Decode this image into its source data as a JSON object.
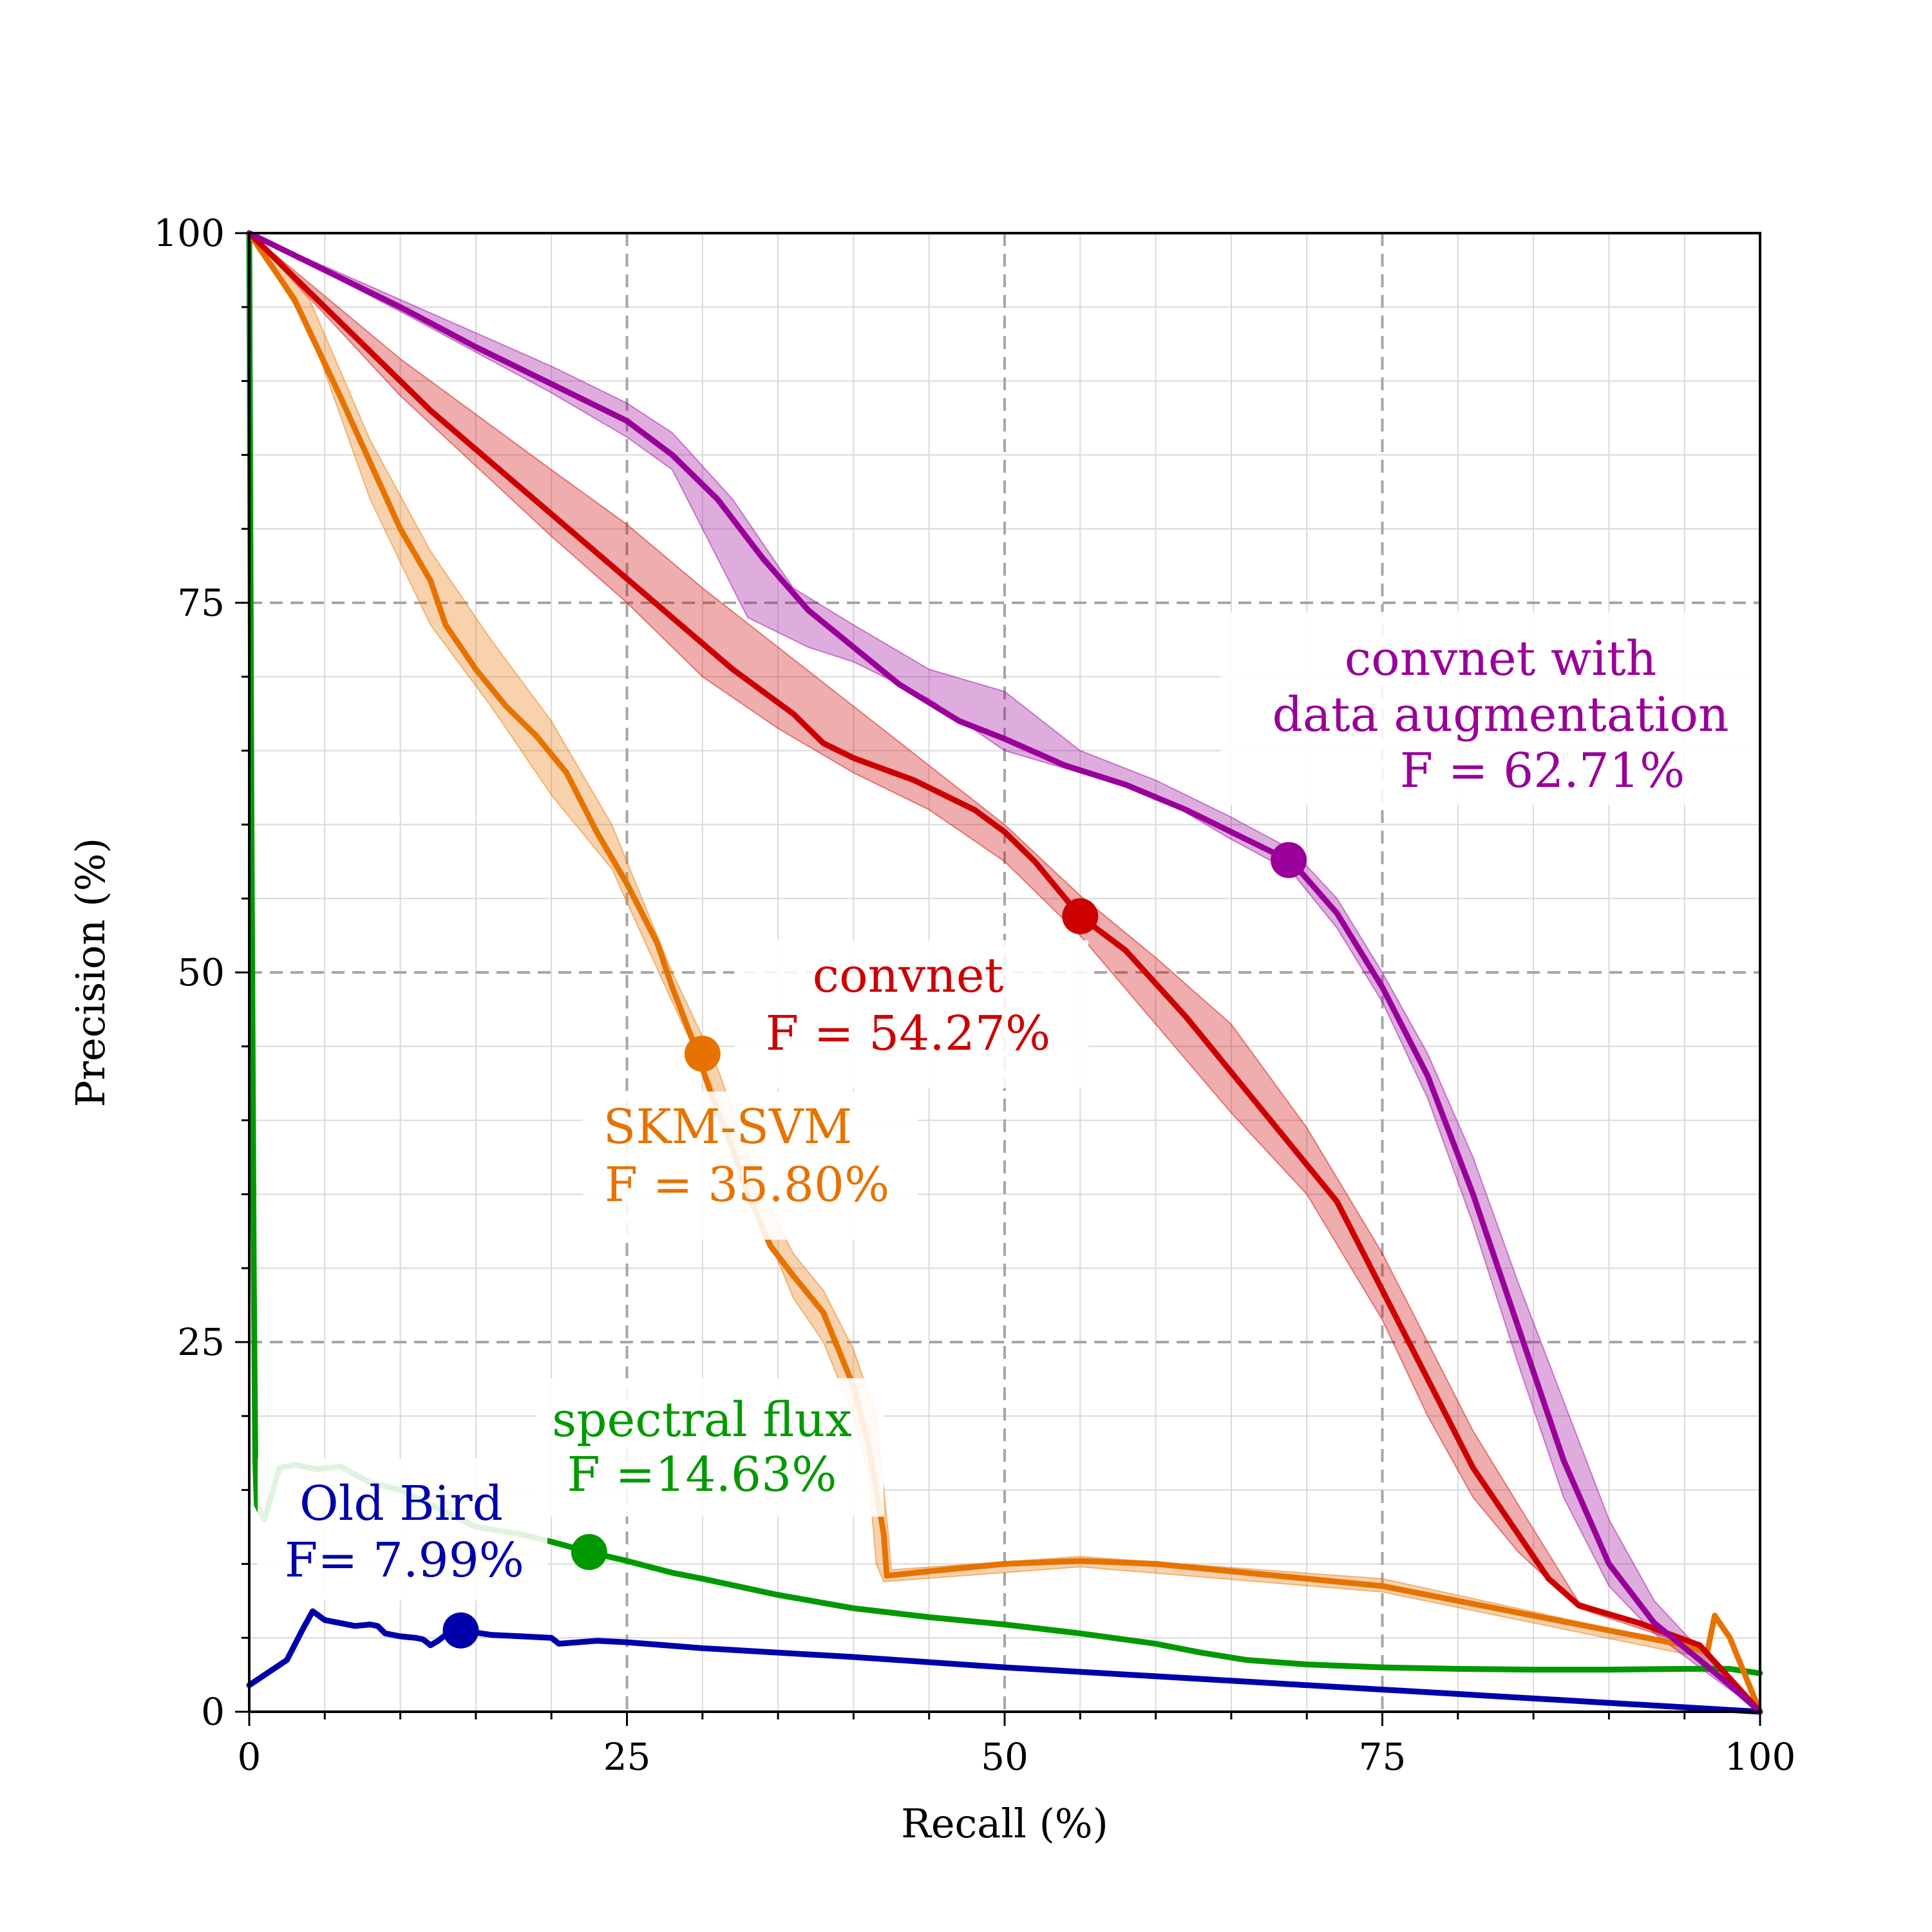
{
  "chart_data": {
    "type": "line",
    "xlabel": "Recall (%)",
    "ylabel": "Precision (%)",
    "xlim": [
      0,
      100
    ],
    "ylim": [
      0,
      100
    ],
    "xticks": [
      0,
      25,
      50,
      75,
      100
    ],
    "yticks": [
      0,
      25,
      50,
      75,
      100
    ],
    "grid": true,
    "series": [
      {
        "key": "convnet_aug",
        "color": "#990099",
        "points": [
          [
            0,
            100
          ],
          [
            5,
            97.5
          ],
          [
            10,
            95
          ],
          [
            15,
            92.3
          ],
          [
            20,
            89.8
          ],
          [
            25,
            87.3
          ],
          [
            28,
            85
          ],
          [
            31,
            82
          ],
          [
            34,
            78
          ],
          [
            37,
            74.5
          ],
          [
            40,
            72
          ],
          [
            43,
            69.5
          ],
          [
            47,
            67
          ],
          [
            50,
            65.8
          ],
          [
            54,
            64
          ],
          [
            58,
            62.7
          ],
          [
            62,
            61
          ],
          [
            66,
            59
          ],
          [
            69,
            57.5
          ],
          [
            72,
            54
          ],
          [
            75,
            49
          ],
          [
            78,
            43
          ],
          [
            81,
            35
          ],
          [
            84,
            26
          ],
          [
            87,
            17
          ],
          [
            90,
            10
          ],
          [
            93,
            6
          ],
          [
            96,
            3.5
          ],
          [
            98,
            1.8
          ],
          [
            100,
            0
          ]
        ],
        "band_upper": [
          [
            0,
            100
          ],
          [
            10,
            95.5
          ],
          [
            20,
            91
          ],
          [
            25,
            88.5
          ],
          [
            28,
            86.5
          ],
          [
            32,
            82
          ],
          [
            36,
            76
          ],
          [
            40,
            73.5
          ],
          [
            45,
            70.5
          ],
          [
            50,
            69
          ],
          [
            55,
            65
          ],
          [
            60,
            63
          ],
          [
            65,
            60.5
          ],
          [
            69,
            58.3
          ],
          [
            72,
            55
          ],
          [
            75,
            50
          ],
          [
            78,
            44.5
          ],
          [
            81,
            37.5
          ],
          [
            84,
            29
          ],
          [
            87,
            21
          ],
          [
            90,
            13
          ],
          [
            93,
            7.5
          ],
          [
            96,
            4.2
          ],
          [
            100,
            0
          ]
        ],
        "band_lower": [
          [
            0,
            100
          ],
          [
            10,
            94.7
          ],
          [
            20,
            89.2
          ],
          [
            25,
            86.2
          ],
          [
            28,
            84
          ],
          [
            30,
            80
          ],
          [
            33,
            74
          ],
          [
            37,
            72
          ],
          [
            40,
            71
          ],
          [
            45,
            68.5
          ],
          [
            50,
            65
          ],
          [
            55,
            63.5
          ],
          [
            60,
            62
          ],
          [
            65,
            59
          ],
          [
            69,
            56.8
          ],
          [
            72,
            53
          ],
          [
            75,
            48
          ],
          [
            78,
            41.5
          ],
          [
            81,
            33
          ],
          [
            84,
            23.5
          ],
          [
            87,
            14.5
          ],
          [
            90,
            8.5
          ],
          [
            93,
            5.3
          ],
          [
            96,
            3
          ],
          [
            100,
            0
          ]
        ],
        "marker": [
          68.8,
          57.6
        ],
        "label_lines": [
          "convnet with",
          "data augmentation",
          "F = 62.71%"
        ]
      },
      {
        "key": "convnet",
        "color": "#cc0000",
        "points": [
          [
            0,
            100
          ],
          [
            4,
            96
          ],
          [
            8,
            92
          ],
          [
            12,
            88
          ],
          [
            16,
            84.5
          ],
          [
            20,
            81
          ],
          [
            24,
            77.5
          ],
          [
            28,
            74
          ],
          [
            32,
            70.5
          ],
          [
            36,
            67.5
          ],
          [
            38,
            65.5
          ],
          [
            40,
            64.5
          ],
          [
            44,
            63
          ],
          [
            48,
            61
          ],
          [
            50,
            59.5
          ],
          [
            52,
            57.5
          ],
          [
            55,
            53.8
          ],
          [
            58,
            51.5
          ],
          [
            62,
            47
          ],
          [
            66,
            42
          ],
          [
            70,
            37
          ],
          [
            72,
            34.5
          ],
          [
            75,
            28.5
          ],
          [
            78,
            22.5
          ],
          [
            81,
            16.5
          ],
          [
            84,
            12
          ],
          [
            86,
            9
          ],
          [
            88,
            7.2
          ],
          [
            92,
            6
          ],
          [
            96,
            4.5
          ],
          [
            100,
            0
          ]
        ],
        "band_upper": [
          [
            0,
            100
          ],
          [
            10,
            91.5
          ],
          [
            20,
            84
          ],
          [
            25,
            80.3
          ],
          [
            30,
            76
          ],
          [
            35,
            72
          ],
          [
            40,
            68
          ],
          [
            45,
            64
          ],
          [
            50,
            60
          ],
          [
            55,
            55.2
          ],
          [
            60,
            51
          ],
          [
            65,
            46.5
          ],
          [
            70,
            39.5
          ],
          [
            75,
            31
          ],
          [
            78,
            25
          ],
          [
            81,
            19
          ],
          [
            84,
            14
          ],
          [
            88,
            7.4
          ],
          [
            96,
            4.6
          ],
          [
            100,
            0
          ]
        ],
        "band_lower": [
          [
            0,
            100
          ],
          [
            10,
            89
          ],
          [
            20,
            79.5
          ],
          [
            25,
            75
          ],
          [
            30,
            70
          ],
          [
            35,
            66.5
          ],
          [
            40,
            63.5
          ],
          [
            45,
            61
          ],
          [
            50,
            57.5
          ],
          [
            55,
            52.5
          ],
          [
            60,
            46.5
          ],
          [
            65,
            40.5
          ],
          [
            70,
            35
          ],
          [
            75,
            26.5
          ],
          [
            78,
            20
          ],
          [
            81,
            14.5
          ],
          [
            84,
            10.8
          ],
          [
            88,
            7
          ],
          [
            96,
            4.3
          ],
          [
            100,
            0
          ]
        ],
        "marker": [
          55,
          53.8
        ],
        "label_lines": [
          "convnet",
          "F = 54.27%"
        ]
      },
      {
        "key": "skm_svm",
        "color": "#e67300",
        "points": [
          [
            0,
            100
          ],
          [
            3,
            95.5
          ],
          [
            6,
            89
          ],
          [
            8,
            84.5
          ],
          [
            10,
            80
          ],
          [
            12,
            76.5
          ],
          [
            13,
            73.5
          ],
          [
            15,
            70.5
          ],
          [
            17,
            68
          ],
          [
            19,
            66
          ],
          [
            21,
            63.5
          ],
          [
            23,
            59.5
          ],
          [
            25,
            56
          ],
          [
            27,
            52
          ],
          [
            28,
            49
          ],
          [
            29.5,
            45
          ],
          [
            30.5,
            42
          ],
          [
            32,
            38
          ],
          [
            33,
            35
          ],
          [
            34.5,
            31.5
          ],
          [
            36,
            29.5
          ],
          [
            38,
            27
          ],
          [
            39,
            24.5
          ],
          [
            40,
            22
          ],
          [
            41,
            18
          ],
          [
            42,
            12
          ],
          [
            42.2,
            9.2
          ],
          [
            45,
            9.5
          ],
          [
            50,
            10
          ],
          [
            55,
            10.2
          ],
          [
            60,
            10
          ],
          [
            65,
            9.5
          ],
          [
            70,
            9
          ],
          [
            75,
            8.5
          ],
          [
            80,
            7.5
          ],
          [
            85,
            6.5
          ],
          [
            90,
            5.5
          ],
          [
            95,
            4.5
          ],
          [
            96.5,
            4
          ],
          [
            97,
            6.5
          ],
          [
            98,
            5
          ],
          [
            100,
            0
          ]
        ],
        "band_upper": [
          [
            0,
            100
          ],
          [
            4,
            95.5
          ],
          [
            8,
            86
          ],
          [
            12,
            78.5
          ],
          [
            16,
            72.5
          ],
          [
            20,
            67
          ],
          [
            24,
            60
          ],
          [
            28,
            50
          ],
          [
            31,
            43.5
          ],
          [
            34,
            35
          ],
          [
            36,
            31
          ],
          [
            38,
            28.5
          ],
          [
            40,
            24.5
          ],
          [
            41.5,
            20
          ],
          [
            42.3,
            12
          ],
          [
            42.5,
            9.6
          ],
          [
            55,
            10.5
          ],
          [
            75,
            9
          ],
          [
            96,
            4.3
          ],
          [
            100,
            0
          ]
        ],
        "band_lower": [
          [
            0,
            100
          ],
          [
            4,
            93.5
          ],
          [
            8,
            82
          ],
          [
            12,
            73.5
          ],
          [
            16,
            68
          ],
          [
            20,
            62
          ],
          [
            24,
            57
          ],
          [
            28,
            48
          ],
          [
            31,
            41.5
          ],
          [
            34,
            33
          ],
          [
            36,
            28
          ],
          [
            38,
            25
          ],
          [
            40,
            20
          ],
          [
            41,
            16
          ],
          [
            41.5,
            10
          ],
          [
            42,
            8.8
          ],
          [
            55,
            9.8
          ],
          [
            75,
            8.1
          ],
          [
            96,
            3.7
          ],
          [
            100,
            0
          ]
        ],
        "marker": [
          30,
          44.5
        ],
        "label_lines": [
          "SKM-SVM",
          "F = 35.80%"
        ]
      },
      {
        "key": "spectral_flux",
        "color": "#009900",
        "points": [
          [
            0,
            100
          ],
          [
            0.15,
            60
          ],
          [
            0.3,
            30
          ],
          [
            0.4,
            17
          ],
          [
            0.5,
            14
          ],
          [
            1,
            13
          ],
          [
            2,
            16.5
          ],
          [
            3,
            16.7
          ],
          [
            4.5,
            16.4
          ],
          [
            6,
            16.6
          ],
          [
            8,
            15.5
          ],
          [
            10,
            15
          ],
          [
            12,
            14
          ],
          [
            15,
            12.5
          ],
          [
            18,
            12
          ],
          [
            20,
            11.5
          ],
          [
            22.5,
            10.8
          ],
          [
            25,
            10.2
          ],
          [
            28,
            9.4
          ],
          [
            30,
            9
          ],
          [
            35,
            7.9
          ],
          [
            40,
            7
          ],
          [
            45,
            6.4
          ],
          [
            50,
            5.9
          ],
          [
            55,
            5.3
          ],
          [
            60,
            4.6
          ],
          [
            63,
            4
          ],
          [
            66,
            3.5
          ],
          [
            70,
            3.2
          ],
          [
            75,
            3
          ],
          [
            80,
            2.9
          ],
          [
            85,
            2.85
          ],
          [
            90,
            2.85
          ],
          [
            95,
            2.9
          ],
          [
            98,
            2.9
          ],
          [
            100,
            2.6
          ]
        ],
        "marker": [
          22.5,
          10.8
        ],
        "label_lines": [
          "spectral flux",
          "F =14.63%"
        ]
      },
      {
        "key": "old_bird",
        "color": "#0000aa",
        "points": [
          [
            0,
            1.8
          ],
          [
            2.5,
            3.5
          ],
          [
            3.5,
            5.5
          ],
          [
            4.2,
            6.8
          ],
          [
            5,
            6.2
          ],
          [
            6,
            6
          ],
          [
            7,
            5.8
          ],
          [
            8,
            5.9
          ],
          [
            8.5,
            5.8
          ],
          [
            9,
            5.3
          ],
          [
            10,
            5.1
          ],
          [
            11,
            5
          ],
          [
            11.5,
            4.9
          ],
          [
            12,
            4.5
          ],
          [
            12.5,
            4.8
          ],
          [
            13,
            5.2
          ],
          [
            14,
            5.5
          ],
          [
            16,
            5.2
          ],
          [
            18,
            5.1
          ],
          [
            20,
            5
          ],
          [
            20.5,
            4.6
          ],
          [
            23,
            4.8
          ],
          [
            25,
            4.7
          ],
          [
            30,
            4.3
          ],
          [
            40,
            3.7
          ],
          [
            50,
            3
          ],
          [
            60,
            2.4
          ],
          [
            70,
            1.8
          ],
          [
            80,
            1.2
          ],
          [
            90,
            0.6
          ],
          [
            100,
            0
          ]
        ],
        "marker": [
          14,
          5.5
        ],
        "label_lines": [
          "Old Bird",
          "F= 7.99%"
        ]
      }
    ]
  }
}
